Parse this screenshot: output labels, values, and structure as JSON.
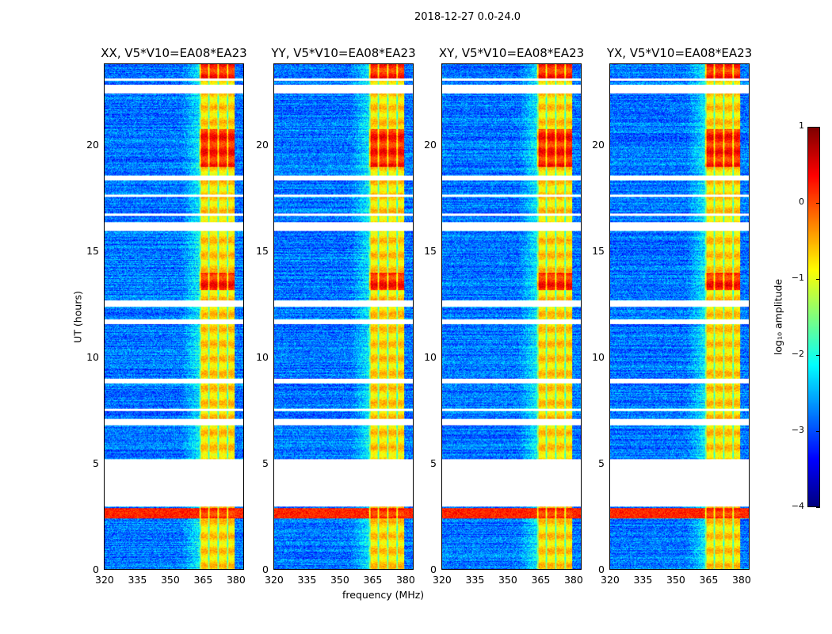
{
  "chart_data": {
    "type": "heatmap",
    "title": "2018-12-27 0.0-24.0",
    "xlabel": "frequency (MHz)",
    "ylabel": "UT (hours)",
    "xlim": [
      320,
      384
    ],
    "ylim": [
      0,
      23.85
    ],
    "xticks": [
      "320",
      "335",
      "350",
      "365",
      "380"
    ],
    "xtick_values": [
      320,
      335,
      350,
      365,
      380
    ],
    "yticks": [
      "0",
      "5",
      "10",
      "15",
      "20"
    ],
    "ytick_values": [
      0,
      5,
      10,
      15,
      20
    ],
    "panels": [
      {
        "title": "XX, V5*V10=EA08*EA23",
        "seed": 11
      },
      {
        "title": "YY, V5*V10=EA08*EA23",
        "seed": 23
      },
      {
        "title": "XY, V5*V10=EA08*EA23",
        "seed": 37
      },
      {
        "title": "YX, V5*V10=EA08*EA23",
        "seed": 51
      }
    ],
    "background_log_amplitude": -2.8,
    "rfi_band_mhz": [
      363.5,
      380
    ],
    "rfi_log_amplitude": -0.7,
    "flagged_time_ranges_hours": [
      [
        2.95,
        5.2
      ],
      [
        22.5,
        22.9
      ],
      [
        16.0,
        16.4
      ],
      [
        12.4,
        12.7
      ],
      [
        6.8,
        7.1
      ],
      [
        8.8,
        9.0
      ],
      [
        11.6,
        11.8
      ],
      [
        18.4,
        18.6
      ],
      [
        23.1,
        23.2
      ],
      [
        16.7,
        16.8
      ],
      [
        7.5,
        7.6
      ],
      [
        17.6,
        17.7
      ]
    ],
    "strong_time_ranges_hours": [
      [
        2.4,
        2.9
      ],
      [
        23.2,
        23.85
      ],
      [
        19.0,
        20.8
      ],
      [
        13.2,
        14.0
      ]
    ],
    "colorbar": {
      "label": "log₁₀ amplitude",
      "clim": [
        -4,
        1
      ],
      "ticks": [
        "1",
        "0",
        "−1",
        "−2",
        "−3",
        "−4"
      ],
      "tick_values": [
        1,
        0,
        -1,
        -2,
        -3,
        -4
      ]
    }
  }
}
